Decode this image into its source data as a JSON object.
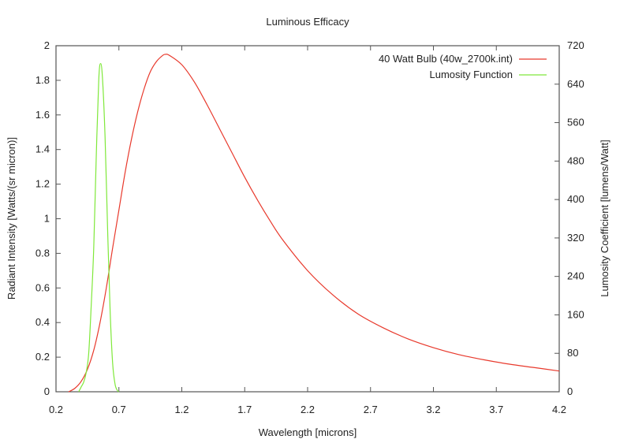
{
  "chart_data": {
    "type": "line",
    "title": "Luminous Efficacy",
    "xlabel": "Wavelength [microns]",
    "ylabel": "Radiant Intensity [Watts/(sr micron)]",
    "y2label": "Lumosity Coefficient [lumens/Watt]",
    "xlim": [
      0.2,
      4.2
    ],
    "ylim": [
      0,
      2
    ],
    "y2lim": [
      0,
      720
    ],
    "xticks": [
      "0.2",
      "0.7",
      "1.2",
      "1.7",
      "2.2",
      "2.7",
      "3.2",
      "3.7",
      "4.2"
    ],
    "yticks": [
      "0",
      "0.2",
      "0.4",
      "0.6",
      "0.8",
      "1",
      "1.2",
      "1.4",
      "1.6",
      "1.8",
      "2"
    ],
    "y2ticks": [
      "0",
      "80",
      "160",
      "240",
      "320",
      "400",
      "480",
      "560",
      "640",
      "720"
    ],
    "grid": false,
    "legend_position": "top-right",
    "series": [
      {
        "name": "40 Watt Bulb (40w_2700k.int)",
        "color": "#e8392c",
        "axis": "y",
        "x": [
          0.3,
          0.35,
          0.4,
          0.45,
          0.5,
          0.55,
          0.6,
          0.65,
          0.7,
          0.75,
          0.8,
          0.85,
          0.9,
          0.95,
          1.0,
          1.05,
          1.07,
          1.1,
          1.2,
          1.3,
          1.4,
          1.5,
          1.6,
          1.7,
          1.8,
          1.9,
          2.0,
          2.2,
          2.4,
          2.6,
          2.8,
          3.0,
          3.2,
          3.4,
          3.6,
          3.8,
          4.0,
          4.2
        ],
        "values": [
          0.0,
          0.02,
          0.06,
          0.13,
          0.24,
          0.4,
          0.6,
          0.83,
          1.05,
          1.27,
          1.46,
          1.62,
          1.75,
          1.85,
          1.91,
          1.945,
          1.95,
          1.945,
          1.89,
          1.79,
          1.66,
          1.52,
          1.38,
          1.24,
          1.11,
          0.99,
          0.88,
          0.7,
          0.56,
          0.45,
          0.37,
          0.305,
          0.255,
          0.215,
          0.185,
          0.16,
          0.14,
          0.12
        ]
      },
      {
        "name": "Lumosity Function",
        "color": "#7fe83a",
        "axis": "y2",
        "x": [
          0.38,
          0.4,
          0.42,
          0.44,
          0.46,
          0.48,
          0.5,
          0.52,
          0.54,
          0.555,
          0.57,
          0.59,
          0.61,
          0.63,
          0.65,
          0.67,
          0.69,
          0.7
        ],
        "values": [
          0,
          10,
          20,
          40,
          80,
          180,
          300,
          490,
          650,
          683,
          650,
          530,
          340,
          170,
          60,
          15,
          2,
          0
        ]
      }
    ]
  }
}
